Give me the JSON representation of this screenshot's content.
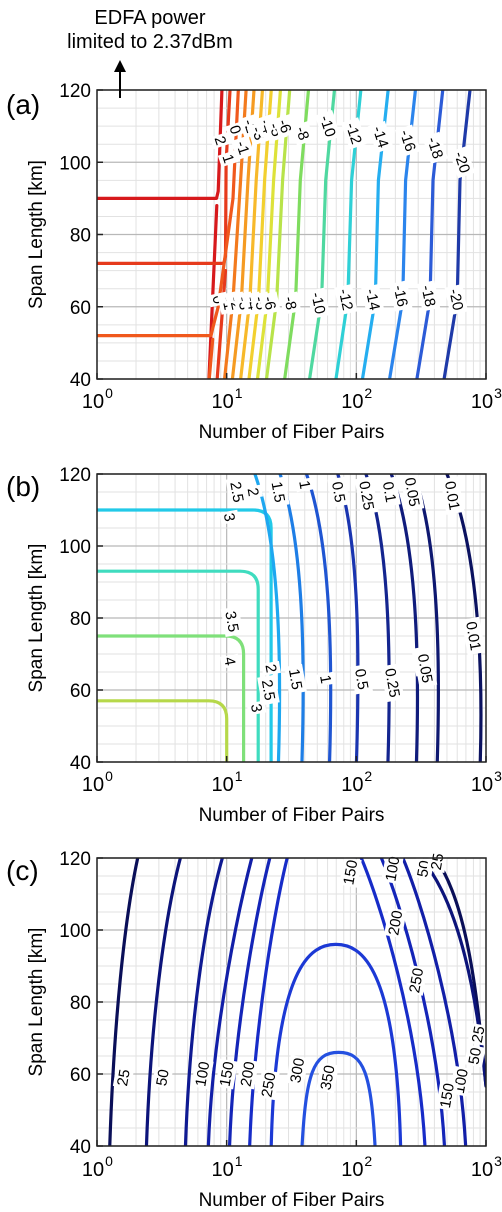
{
  "annotation": {
    "line1": "EDFA power",
    "line2": "limited to 2.37dBm"
  },
  "chart_data": [
    {
      "type": "contour",
      "panel_label": "(a)",
      "xlabel": "Number of Fiber Pairs",
      "ylabel": "Span Length [km]",
      "xscale": "log",
      "xlim": [
        1,
        1000
      ],
      "ylim": [
        40,
        120
      ],
      "xticks": [
        1,
        10,
        100,
        1000
      ],
      "xtick_labels": [
        "10^0",
        "10^1",
        "10^2",
        "10^3"
      ],
      "yticks": [
        40,
        60,
        80,
        100,
        120
      ],
      "grid": true,
      "contours": [
        {
          "level": "2",
          "color": "#d7191c",
          "kink_y": 90,
          "upper_x": [
            8.6,
            9.3
          ],
          "lower_x": [
            7.8,
            8.4
          ],
          "label_y": 106
        },
        {
          "level": "1",
          "color": "#e63a1c",
          "kink_y": 72,
          "upper_x": [
            9.9,
            10.8
          ],
          "lower_x": [
            9.0,
            9.8
          ],
          "label_y": 101
        },
        {
          "level": "0",
          "color": "#f0581c",
          "kink_y": 52,
          "upper_x": [
            11.2,
            12.5
          ],
          "lower_x": [
            7.8,
            8.6
          ],
          "label_y": 109
        },
        {
          "level": "-1",
          "color": "#f37a1d",
          "upper_x": [
            12.8,
            14.4
          ],
          "lower_x": [
            10.0,
            11.2
          ],
          "label_y": 104
        },
        {
          "level": "-2",
          "color": "#f59b22",
          "upper_x": [
            14.6,
            16.6
          ],
          "lower_x": [
            11.5,
            13.0
          ],
          "label_y": 110
        },
        {
          "level": "-3",
          "color": "#f7b92a",
          "upper_x": [
            16.9,
            19.3
          ],
          "lower_x": [
            13.3,
            15.1
          ],
          "label_y": 108
        },
        {
          "level": "-4",
          "color": "#f2d02f",
          "upper_x": [
            19.6,
            22.6
          ],
          "lower_x": [
            15.4,
            17.6
          ],
          "label_y": 110
        },
        {
          "level": "-5",
          "color": "#dde23a",
          "upper_x": [
            23.0,
            26.6
          ],
          "lower_x": [
            17.9,
            20.6
          ],
          "label_y": 109
        },
        {
          "level": "-6",
          "color": "#b8e34a",
          "upper_x": [
            27.0,
            31.4
          ],
          "lower_x": [
            21.0,
            24.3
          ],
          "label_y": 110
        },
        {
          "level": "-8",
          "color": "#7fdc5f",
          "upper_x": [
            37.0,
            44.0
          ],
          "lower_x": [
            29.0,
            34.0
          ],
          "label_y": 108
        },
        {
          "level": "-10",
          "color": "#4fd8a0",
          "upper_x": [
            58.0,
            70.0
          ],
          "lower_x": [
            45.0,
            54.0
          ],
          "label_y": 110
        },
        {
          "level": "-12",
          "color": "#2fd0d6",
          "upper_x": [
            92.0,
            112.0
          ],
          "lower_x": [
            72.0,
            86.0
          ],
          "label_y": 108
        },
        {
          "level": "-14",
          "color": "#25aef0",
          "upper_x": [
            148.0,
            182.0
          ],
          "lower_x": [
            115.0,
            140.0
          ],
          "label_y": 107
        },
        {
          "level": "-16",
          "color": "#2b84ec",
          "upper_x": [
            240.0,
            296.0
          ],
          "lower_x": [
            186.0,
            228.0
          ],
          "label_y": 106
        },
        {
          "level": "-18",
          "color": "#2c5bd7",
          "upper_x": [
            390.0,
            480.0
          ],
          "lower_x": [
            302.0,
            370.0
          ],
          "label_y": 104
        },
        {
          "level": "-20",
          "color": "#1f3aa8",
          "upper_x": [
            630.0,
            780.0
          ],
          "lower_x": [
            490.0,
            600.0
          ],
          "label_y": 100
        }
      ],
      "lower_labels": [
        {
          "text": "0",
          "x": 8.6,
          "y": 62
        },
        {
          "text": "-1",
          "x": 10.3,
          "y": 61
        },
        {
          "text": "-2",
          "x": 11.8,
          "y": 61
        },
        {
          "text": "-3",
          "x": 13.6,
          "y": 61
        },
        {
          "text": "-4",
          "x": 15.8,
          "y": 61
        },
        {
          "text": "-5",
          "x": 18.3,
          "y": 61
        },
        {
          "text": "-6",
          "x": 21.5,
          "y": 61
        },
        {
          "text": "-8",
          "x": 31.0,
          "y": 61
        },
        {
          "text": "-10",
          "x": 51.0,
          "y": 61
        },
        {
          "text": "-12",
          "x": 83.0,
          "y": 62
        },
        {
          "text": "-14",
          "x": 134.0,
          "y": 62
        },
        {
          "text": "-16",
          "x": 220.0,
          "y": 63
        },
        {
          "text": "-18",
          "x": 360.0,
          "y": 63
        },
        {
          "text": "-20",
          "x": 590.0,
          "y": 62
        }
      ]
    },
    {
      "type": "contour",
      "panel_label": "(b)",
      "xlabel": "Number of Fiber Pairs",
      "ylabel": "Span Length [km]",
      "xscale": "log",
      "xlim": [
        1,
        1000
      ],
      "ylim": [
        40,
        120
      ],
      "xticks": [
        1,
        10,
        100,
        1000
      ],
      "xtick_labels": [
        "10^0",
        "10^1",
        "10^2",
        "10^3"
      ],
      "yticks": [
        40,
        60,
        80,
        100,
        120
      ],
      "grid": true,
      "contours": [
        {
          "level": "4",
          "color": "#b6d84a",
          "flat_y": 57,
          "shape": "flat_corner",
          "x_end": 10.0
        },
        {
          "level": "3.5",
          "color": "#7fe07a",
          "flat_y": 75,
          "shape": "flat_corner",
          "x_end": 13.5
        },
        {
          "level": "3",
          "color": "#3fdcbf",
          "flat_y": 93,
          "shape": "flat_corner",
          "x_end": 17.5
        },
        {
          "level": "2.5",
          "color": "#22c9e8",
          "flat_y": 110,
          "shape": "flat_corner",
          "x_end": 22.0
        },
        {
          "level": "2",
          "color": "#1ea7f0",
          "shape": "arc",
          "x_top": 16.0,
          "x_bottom": 25.0
        },
        {
          "level": "1.5",
          "color": "#1e7ee6",
          "shape": "arc",
          "x_top": 25.0,
          "x_bottom": 38.0
        },
        {
          "level": "1",
          "color": "#1f55d2",
          "shape": "arc",
          "x_top": 40.0,
          "x_bottom": 62.0
        },
        {
          "level": "0.5",
          "color": "#1a35b0",
          "shape": "arc",
          "x_top": 70.0,
          "x_bottom": 100.0
        },
        {
          "level": "0.25",
          "color": "#14258f",
          "shape": "arc",
          "x_top": 115.0,
          "x_bottom": 175.0
        },
        {
          "level": "0.1",
          "color": "#101c7c",
          "shape": "arc",
          "x_top": 180.0,
          "x_bottom": 290.0
        },
        {
          "level": "0.05",
          "color": "#0e1870",
          "shape": "arc",
          "x_top": 270.0,
          "x_bottom": 420.0
        },
        {
          "level": "0.01",
          "color": "#0b1260",
          "shape": "arc",
          "x_top": 480.0,
          "x_bottom": 900.0
        }
      ],
      "labels": [
        {
          "text": "2.5",
          "x": 12.0,
          "y": 115
        },
        {
          "text": "3",
          "x": 10.5,
          "y": 108
        },
        {
          "text": "2",
          "x": 16.0,
          "y": 115
        },
        {
          "text": "1.5",
          "x": 25.0,
          "y": 115
        },
        {
          "text": "1",
          "x": 40.0,
          "y": 117
        },
        {
          "text": "0.5",
          "x": 73.0,
          "y": 115
        },
        {
          "text": "0.25",
          "x": 120.0,
          "y": 114
        },
        {
          "text": "0.1",
          "x": 180.0,
          "y": 115
        },
        {
          "text": "0.05",
          "x": 270.0,
          "y": 115
        },
        {
          "text": "0.01",
          "x": 550.0,
          "y": 114
        },
        {
          "text": "3.5",
          "x": 11.0,
          "y": 79
        },
        {
          "text": "4",
          "x": 10.6,
          "y": 68
        },
        {
          "text": "2.5",
          "x": 21.0,
          "y": 60
        },
        {
          "text": "2",
          "x": 22.0,
          "y": 66
        },
        {
          "text": "1.5",
          "x": 34.0,
          "y": 63
        },
        {
          "text": "1",
          "x": 58.0,
          "y": 63
        },
        {
          "text": "0.5",
          "x": 110.0,
          "y": 63
        },
        {
          "text": "0.25",
          "x": 190.0,
          "y": 62
        },
        {
          "text": "0.1",
          "x": 325.0,
          "y": 68
        },
        {
          "text": "0.05",
          "x": 340.0,
          "y": 66
        },
        {
          "text": "0.01",
          "x": 800.0,
          "y": 75
        },
        {
          "text": "3",
          "x": 17.0,
          "y": 55
        }
      ]
    },
    {
      "type": "contour",
      "panel_label": "(c)",
      "xlabel": "Number of Fiber Pairs",
      "ylabel": "Span Length [km]",
      "xscale": "log",
      "xlim": [
        1,
        1000
      ],
      "ylim": [
        40,
        120
      ],
      "xticks": [
        1,
        10,
        100,
        1000
      ],
      "xtick_labels": [
        "10^0",
        "10^1",
        "10^2",
        "10^3"
      ],
      "yticks": [
        40,
        60,
        80,
        100,
        120
      ],
      "grid": true,
      "contours": [
        {
          "level": "25",
          "color": "#0a0f58",
          "shape": "left_arc",
          "x_bottom": 1.25,
          "x_top": 2.1
        },
        {
          "level": "50",
          "color": "#0c147a",
          "shape": "left_arc",
          "x_bottom": 2.4,
          "x_top": 4.5
        },
        {
          "level": "100",
          "color": "#0f1a92",
          "shape": "left_arc",
          "x_bottom": 4.8,
          "x_top": 9.5
        },
        {
          "level": "150",
          "color": "#121fa8",
          "shape": "loop",
          "x_left_bottom": 7.2,
          "x_left_top": 16.0,
          "x_right_top": 220.0,
          "x_right_bottom": 700.0
        },
        {
          "level": "200",
          "color": "#1425b8",
          "shape": "loop",
          "x_left_bottom": 10.5,
          "x_left_top": 22.0,
          "x_right_top": 150.0,
          "x_right_bottom": 480.0
        },
        {
          "level": "250",
          "color": "#172cc8",
          "shape": "loop",
          "x_left_bottom": 15.0,
          "x_left_top": 30.0,
          "x_right_top": 105.0,
          "x_right_bottom": 340.0
        },
        {
          "level": "300",
          "color": "#1c39d5",
          "shape": "loop",
          "x_left_bottom": 22.0,
          "x_right_bottom": 220.0,
          "top_y": 96
        },
        {
          "level": "350",
          "color": "#2450e0",
          "shape": "loop",
          "x_left_bottom": 38.0,
          "x_right_bottom": 140.0,
          "top_y": 66
        },
        {
          "level": "25",
          "color": "#0a0f58",
          "shape": "right_arc",
          "x_top": 380.0,
          "x_bottom": 1000.0
        },
        {
          "level": "50",
          "color": "#0c147a",
          "shape": "right_arc",
          "x_top": 290.0,
          "x_bottom": 1000.0
        }
      ],
      "labels": [
        {
          "text": "25",
          "x": 1.6,
          "y": 59
        },
        {
          "text": "50",
          "x": 3.2,
          "y": 59
        },
        {
          "text": "100",
          "x": 6.5,
          "y": 60
        },
        {
          "text": "150",
          "x": 10.0,
          "y": 60
        },
        {
          "text": "200",
          "x": 14.5,
          "y": 60
        },
        {
          "text": "250",
          "x": 21.0,
          "y": 57
        },
        {
          "text": "300",
          "x": 35.0,
          "y": 61
        },
        {
          "text": "350",
          "x": 60.0,
          "y": 59
        },
        {
          "text": "150",
          "x": 90.0,
          "y": 116
        },
        {
          "text": "100",
          "x": 190.0,
          "y": 117
        },
        {
          "text": "50",
          "x": 330.0,
          "y": 117
        },
        {
          "text": "25",
          "x": 420.0,
          "y": 119
        },
        {
          "text": "200",
          "x": 200.0,
          "y": 102
        },
        {
          "text": "250",
          "x": 290.0,
          "y": 86
        },
        {
          "text": "25",
          "x": 870.0,
          "y": 71
        },
        {
          "text": "50",
          "x": 820.0,
          "y": 65
        },
        {
          "text": "100",
          "x": 640.0,
          "y": 58
        },
        {
          "text": "150",
          "x": 500.0,
          "y": 54
        }
      ]
    }
  ]
}
